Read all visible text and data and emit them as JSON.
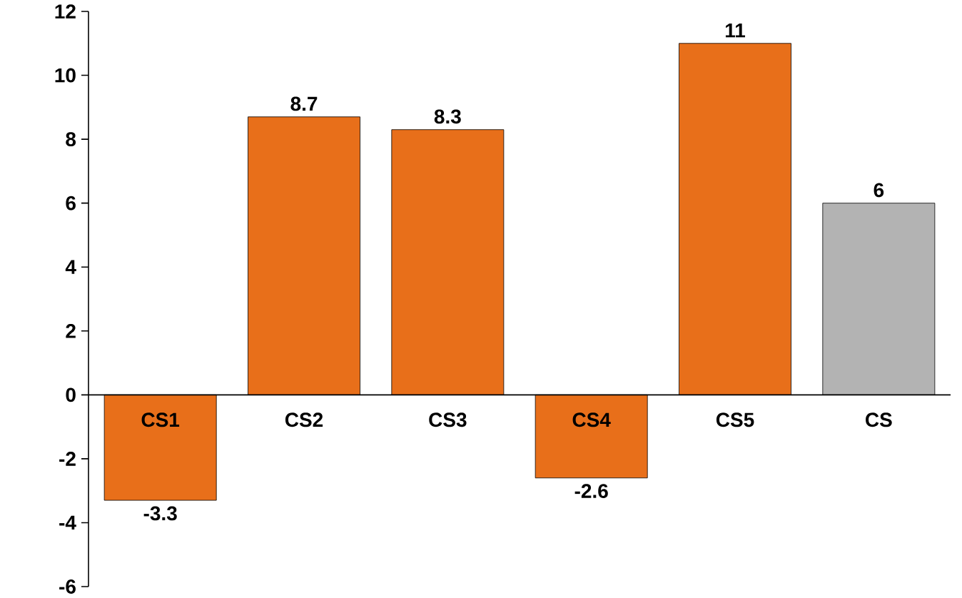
{
  "chart_data": {
    "type": "bar",
    "categories": [
      "CS1",
      "CS2",
      "CS3",
      "CS4",
      "CS5",
      "CS"
    ],
    "values": [
      -3.3,
      8.7,
      8.3,
      -2.6,
      11,
      6
    ],
    "colors": [
      "#e86f1a",
      "#e86f1a",
      "#e86f1a",
      "#e86f1a",
      "#e86f1a",
      "#b3b3b3"
    ],
    "ylim": [
      -6,
      12
    ],
    "yticks": [
      -6,
      -4,
      -2,
      0,
      2,
      4,
      6,
      8,
      10,
      12
    ],
    "data_labels": true,
    "grid": false
  }
}
